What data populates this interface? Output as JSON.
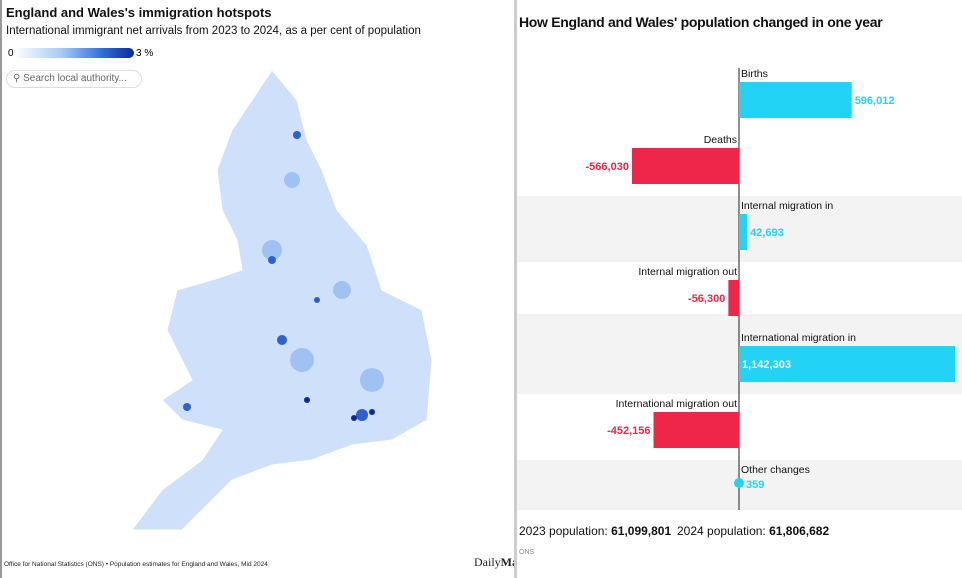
{
  "map_panel": {
    "title": "England and Wales's immigration hotspots",
    "subtitle": "International immigrant net arrivals from 2023 to 2024, as a per cent of population",
    "legend": {
      "min_label": "0",
      "max_label": "3 %",
      "color_low": "#ffffff",
      "color_high": "#0a2a9c"
    },
    "search": {
      "placeholder": "Search local authority...",
      "icon": "search-icon"
    },
    "source": "Office for National Statistics (ONS) • Population estimates for England and Wales, Mid 2024",
    "logo": {
      "part1": "Daily",
      "part2": "Mail"
    }
  },
  "chart_data": {
    "type": "bar",
    "orientation": "horizontal",
    "title": "How England and Wales' population changed in one year",
    "categories": [
      "Births",
      "Deaths",
      "Internal migration in",
      "Internal migration out",
      "International migration in",
      "International migration out",
      "Other changes"
    ],
    "values": [
      596012,
      -566030,
      42693,
      -56300,
      1142303,
      -452156,
      359
    ],
    "value_labels": [
      "596,012",
      "-566,030",
      "42,693",
      "-56,300",
      "1,142,303",
      "-452,156",
      "359"
    ],
    "colors": {
      "positive": "#22d3f5",
      "negative": "#f0254a"
    },
    "footer": {
      "pop2023_label": "2023 population: ",
      "pop2023": "61,099,801",
      "pop2024_label": "2024 population: ",
      "pop2024": "61,806,682",
      "source": "ONS"
    }
  }
}
